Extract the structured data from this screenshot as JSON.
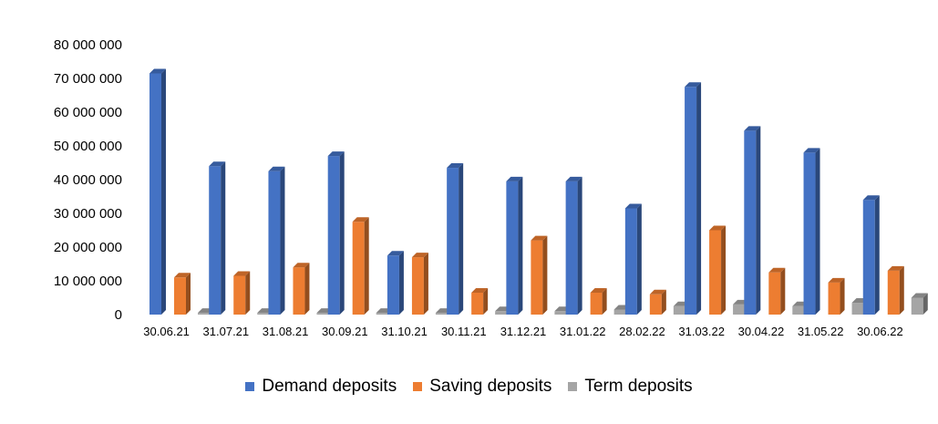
{
  "chart_data": {
    "type": "bar",
    "categories": [
      "30.06.21",
      "31.07.21",
      "31.08.21",
      "30.09.21",
      "31.10.21",
      "30.11.21",
      "31.12.21",
      "31.01.22",
      "28.02.22",
      "31.03.22",
      "30.04.22",
      "31.05.22",
      "30.06.22"
    ],
    "series": [
      {
        "name": "Demand deposits",
        "color": "#4472C4",
        "values": [
          71500000,
          44000000,
          42500000,
          47000000,
          17500000,
          43500000,
          39500000,
          39500000,
          31500000,
          67500000,
          54500000,
          48000000,
          34000000
        ]
      },
      {
        "name": "Saving deposits",
        "color": "#ED7D31",
        "values": [
          11000000,
          11500000,
          14000000,
          27500000,
          17000000,
          6500000,
          22000000,
          6500000,
          6000000,
          25000000,
          12500000,
          9500000,
          13000000
        ]
      },
      {
        "name": "Term deposits",
        "color": "#A5A5A5",
        "values": [
          500000,
          500000,
          500000,
          500000,
          500000,
          1000000,
          1000000,
          1500000,
          2500000,
          3000000,
          2500000,
          3500000,
          5000000
        ]
      }
    ],
    "ylim": [
      0,
      80000000
    ],
    "y_ticks": [
      "0",
      "10 000 000",
      "20 000 000",
      "30 000 000",
      "40 000 000",
      "50 000 000",
      "60 000 000",
      "70 000 000",
      "80 000 000"
    ],
    "grid": false,
    "legend_position": "bottom",
    "style": "3d-clustered-column"
  }
}
